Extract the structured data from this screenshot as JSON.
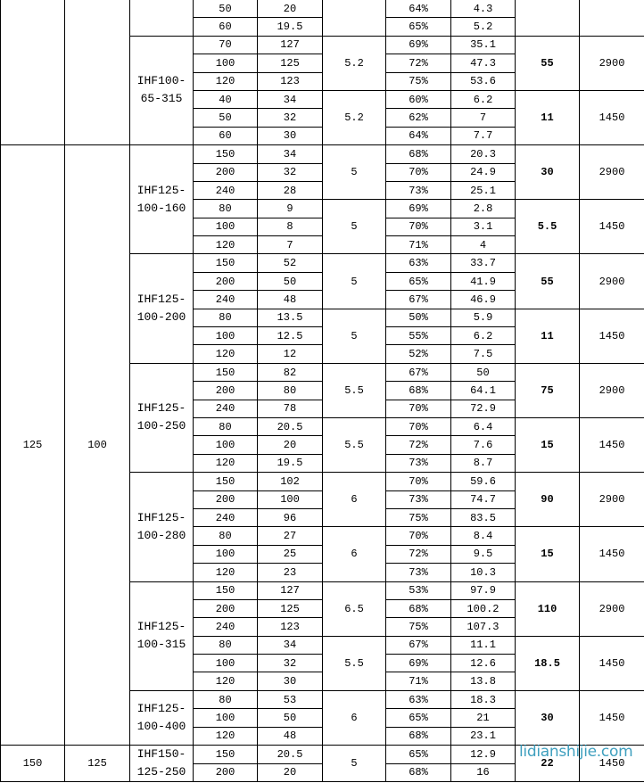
{
  "watermark": "lidianshijie.com",
  "groups": [
    {
      "inlet": "",
      "outlet": "",
      "models": [
        {
          "name": "",
          "subgroups": [
            {
              "npsh": "",
              "power": "",
              "speed": "",
              "rows": [
                [
                  "50",
                  "20",
                  "64%",
                  "4.3"
                ],
                [
                  "60",
                  "19.5",
                  "65%",
                  "5.2"
                ]
              ]
            }
          ]
        },
        {
          "name": "IHF100-65-315",
          "subgroups": [
            {
              "npsh": "5.2",
              "power": "55",
              "speed": "2900",
              "rows": [
                [
                  "70",
                  "127",
                  "69%",
                  "35.1"
                ],
                [
                  "100",
                  "125",
                  "72%",
                  "47.3"
                ],
                [
                  "120",
                  "123",
                  "75%",
                  "53.6"
                ]
              ]
            },
            {
              "npsh": "5.2",
              "power": "11",
              "speed": "1450",
              "rows": [
                [
                  "40",
                  "34",
                  "60%",
                  "6.2"
                ],
                [
                  "50",
                  "32",
                  "62%",
                  "7"
                ],
                [
                  "60",
                  "30",
                  "64%",
                  "7.7"
                ]
              ]
            }
          ]
        }
      ]
    },
    {
      "inlet": "125",
      "outlet": "100",
      "models": [
        {
          "name": "IHF125-100-160",
          "subgroups": [
            {
              "npsh": "5",
              "power": "30",
              "speed": "2900",
              "rows": [
                [
                  "150",
                  "34",
                  "68%",
                  "20.3"
                ],
                [
                  "200",
                  "32",
                  "70%",
                  "24.9"
                ],
                [
                  "240",
                  "28",
                  "73%",
                  "25.1"
                ]
              ]
            },
            {
              "npsh": "5",
              "power": "5.5",
              "speed": "1450",
              "rows": [
                [
                  "80",
                  "9",
                  "69%",
                  "2.8"
                ],
                [
                  "100",
                  "8",
                  "70%",
                  "3.1"
                ],
                [
                  "120",
                  "7",
                  "71%",
                  "4"
                ]
              ]
            }
          ]
        },
        {
          "name": "IHF125-100-200",
          "subgroups": [
            {
              "npsh": "5",
              "power": "55",
              "speed": "2900",
              "rows": [
                [
                  "150",
                  "52",
                  "63%",
                  "33.7"
                ],
                [
                  "200",
                  "50",
                  "65%",
                  "41.9"
                ],
                [
                  "240",
                  "48",
                  "67%",
                  "46.9"
                ]
              ]
            },
            {
              "npsh": "5",
              "power": "11",
              "speed": "1450",
              "rows": [
                [
                  "80",
                  "13.5",
                  "50%",
                  "5.9"
                ],
                [
                  "100",
                  "12.5",
                  "55%",
                  "6.2"
                ],
                [
                  "120",
                  "12",
                  "52%",
                  "7.5"
                ]
              ]
            }
          ]
        },
        {
          "name": "IHF125-100-250",
          "subgroups": [
            {
              "npsh": "5.5",
              "power": "75",
              "speed": "2900",
              "rows": [
                [
                  "150",
                  "82",
                  "67%",
                  "50"
                ],
                [
                  "200",
                  "80",
                  "68%",
                  "64.1"
                ],
                [
                  "240",
                  "78",
                  "70%",
                  "72.9"
                ]
              ]
            },
            {
              "npsh": "5.5",
              "power": "15",
              "speed": "1450",
              "rows": [
                [
                  "80",
                  "20.5",
                  "70%",
                  "6.4"
                ],
                [
                  "100",
                  "20",
                  "72%",
                  "7.6"
                ],
                [
                  "120",
                  "19.5",
                  "73%",
                  "8.7"
                ]
              ]
            }
          ]
        },
        {
          "name": "IHF125-100-280",
          "subgroups": [
            {
              "npsh": "6",
              "power": "90",
              "speed": "2900",
              "rows": [
                [
                  "150",
                  "102",
                  "70%",
                  "59.6"
                ],
                [
                  "200",
                  "100",
                  "73%",
                  "74.7"
                ],
                [
                  "240",
                  "96",
                  "75%",
                  "83.5"
                ]
              ]
            },
            {
              "npsh": "6",
              "power": "15",
              "speed": "1450",
              "rows": [
                [
                  "80",
                  "27",
                  "70%",
                  "8.4"
                ],
                [
                  "100",
                  "25",
                  "72%",
                  "9.5"
                ],
                [
                  "120",
                  "23",
                  "73%",
                  "10.3"
                ]
              ]
            }
          ]
        },
        {
          "name": "IHF125-100-315",
          "subgroups": [
            {
              "npsh": "6.5",
              "power": "110",
              "speed": "2900",
              "rows": [
                [
                  "150",
                  "127",
                  "53%",
                  "97.9"
                ],
                [
                  "200",
                  "125",
                  "68%",
                  "100.2"
                ],
                [
                  "240",
                  "123",
                  "75%",
                  "107.3"
                ]
              ]
            },
            {
              "npsh": "5.5",
              "power": "18.5",
              "speed": "1450",
              "rows": [
                [
                  "80",
                  "34",
                  "67%",
                  "11.1"
                ],
                [
                  "100",
                  "32",
                  "69%",
                  "12.6"
                ],
                [
                  "120",
                  "30",
                  "71%",
                  "13.8"
                ]
              ]
            }
          ]
        },
        {
          "name": "IHF125-100-400",
          "subgroups": [
            {
              "npsh": "6",
              "power": "30",
              "speed": "1450",
              "rows": [
                [
                  "80",
                  "53",
                  "63%",
                  "18.3"
                ],
                [
                  "100",
                  "50",
                  "65%",
                  "21"
                ],
                [
                  "120",
                  "48",
                  "68%",
                  "23.1"
                ]
              ]
            }
          ]
        }
      ]
    },
    {
      "inlet": "150",
      "outlet": "125",
      "models": [
        {
          "name": "IHF150-125-250",
          "subgroups": [
            {
              "npsh": "5",
              "power": "22",
              "speed": "1450",
              "rows": [
                [
                  "150",
                  "20.5",
                  "65%",
                  "12.9"
                ],
                [
                  "200",
                  "20",
                  "68%",
                  "16"
                ]
              ]
            }
          ]
        }
      ]
    }
  ]
}
